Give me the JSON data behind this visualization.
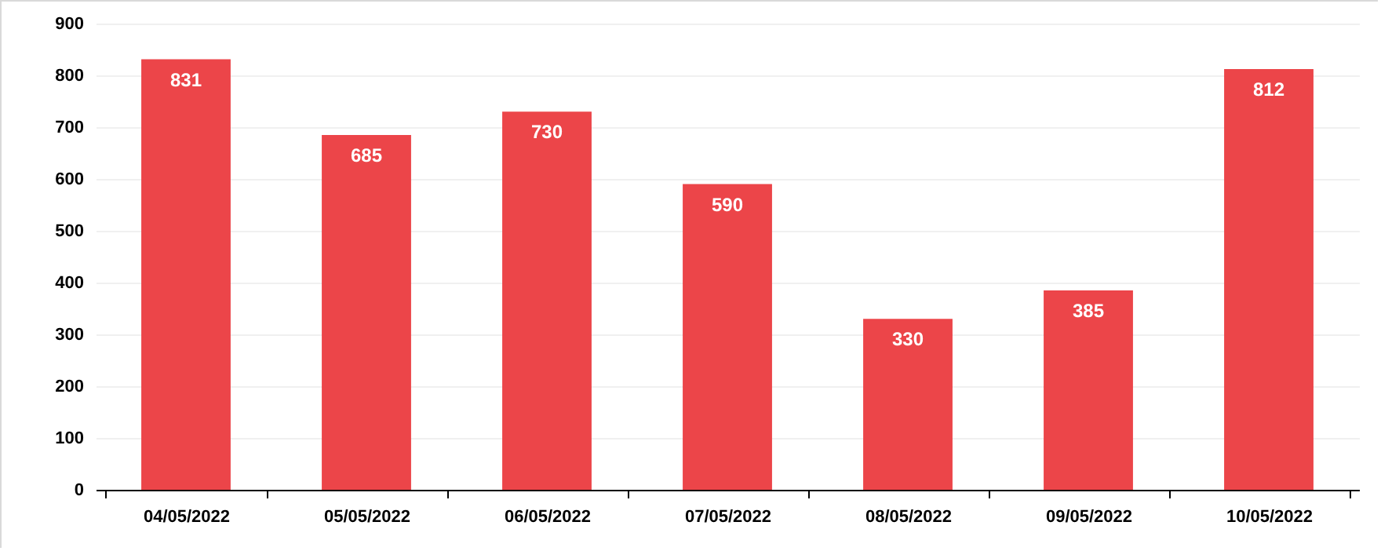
{
  "chart_data": {
    "type": "bar",
    "categories": [
      "04/05/2022",
      "05/05/2022",
      "06/05/2022",
      "07/05/2022",
      "08/05/2022",
      "09/05/2022",
      "10/05/2022"
    ],
    "values": [
      831,
      685,
      730,
      590,
      330,
      385,
      812
    ],
    "color": "#ec4549",
    "ylim": [
      0,
      900
    ],
    "yticks": [
      0,
      100,
      200,
      300,
      400,
      500,
      600,
      700,
      800,
      900
    ],
    "grid": "y",
    "data_labels": true
  }
}
